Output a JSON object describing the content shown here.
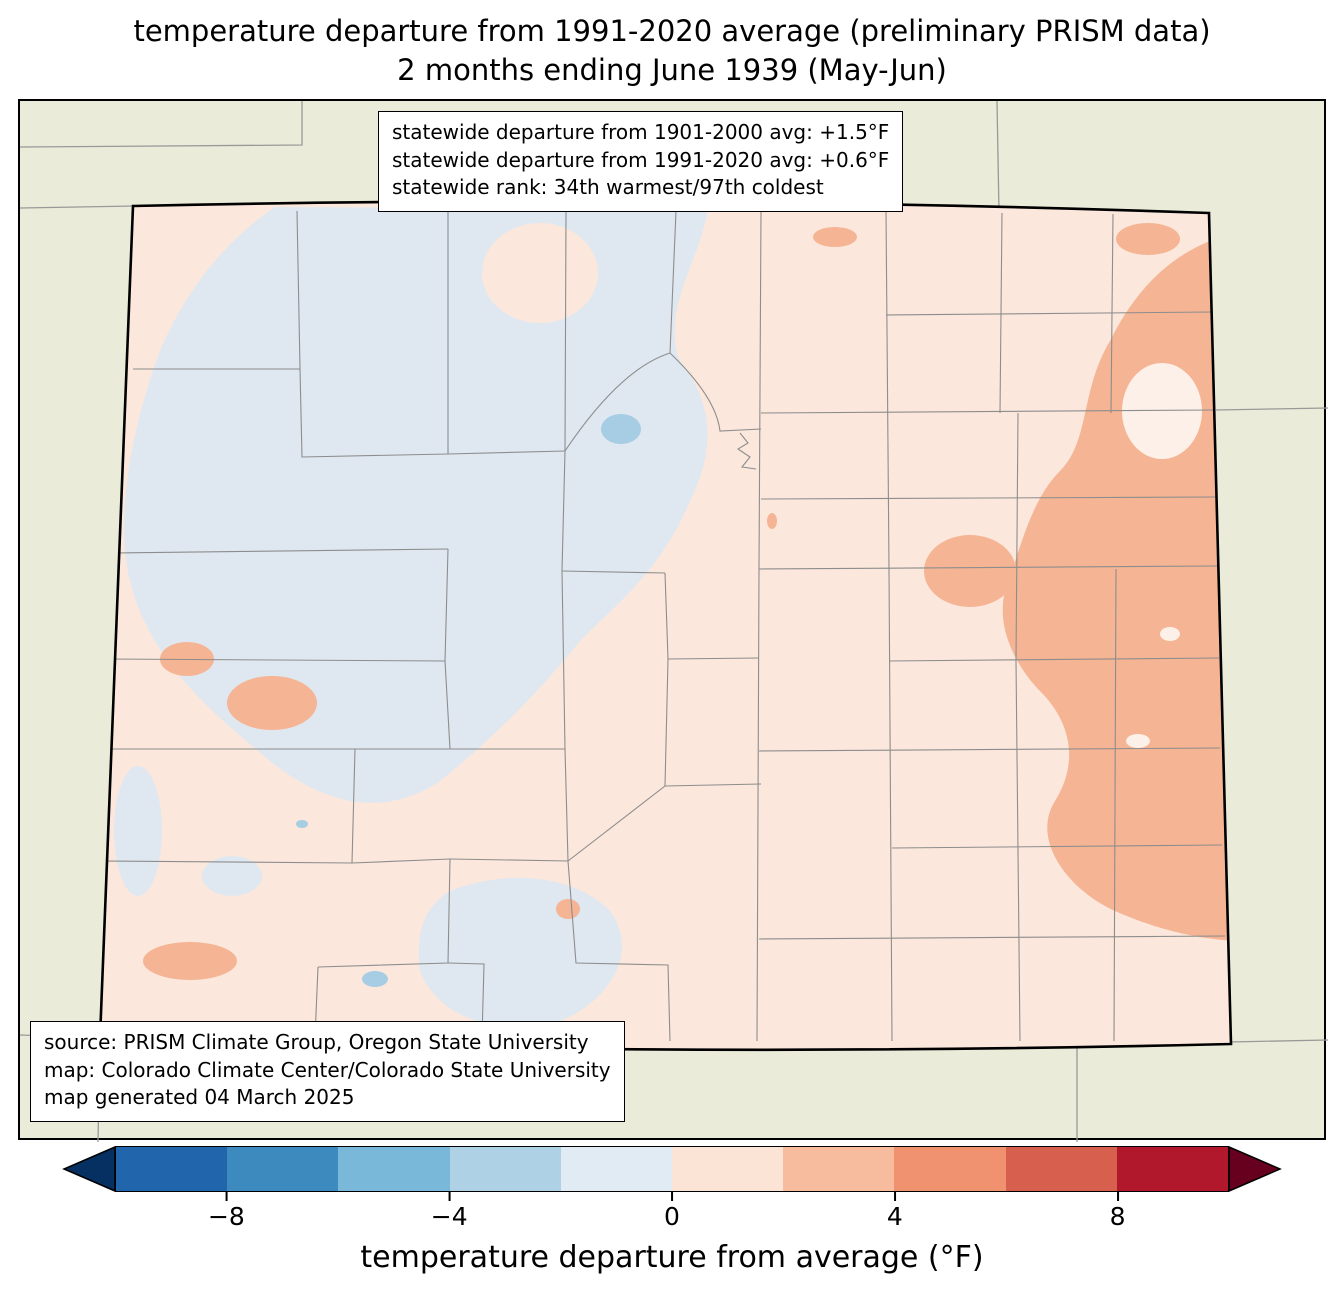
{
  "title": {
    "line1": "temperature departure from 1991-2020 average (preliminary PRISM data)",
    "line2": "2 months ending June 1939 (May-Jun)"
  },
  "stats_box": {
    "line1": "statewide departure from 1901-2000 avg: +1.5°F",
    "line2": "statewide departure from 1991-2020 avg: +0.6°F",
    "line3": "statewide rank: 34th warmest/97th coldest"
  },
  "source_box": {
    "line1": "source: PRISM Climate Group, Oregon State University",
    "line2": "map: Colorado Climate Center/Colorado State University",
    "line3": "map generated 04 March 2025"
  },
  "colorbar": {
    "label": "temperature departure from average (°F)",
    "ticks": [
      "−8",
      "−4",
      "0",
      "4",
      "8"
    ],
    "tick_values": [
      -8,
      -4,
      0,
      4,
      8
    ],
    "range": [
      -10,
      10
    ],
    "under_color": "#053061",
    "over_color": "#67001f",
    "segment_colors": [
      "#2166ac",
      "#3c8abe",
      "#7ab8d9",
      "#aed1e6",
      "#e0ebf3",
      "#fbe3d5",
      "#f7bb9d",
      "#f0926f",
      "#d65f4e",
      "#b2182b"
    ]
  },
  "map": {
    "region": "Colorado",
    "colors": {
      "surround": "#ebebd9",
      "warm": "#fbe7dc",
      "cool": "#dfe8f0",
      "warm2": "#f5b493",
      "hole": "#fdf0e9",
      "lake": "#a6cde3"
    }
  }
}
